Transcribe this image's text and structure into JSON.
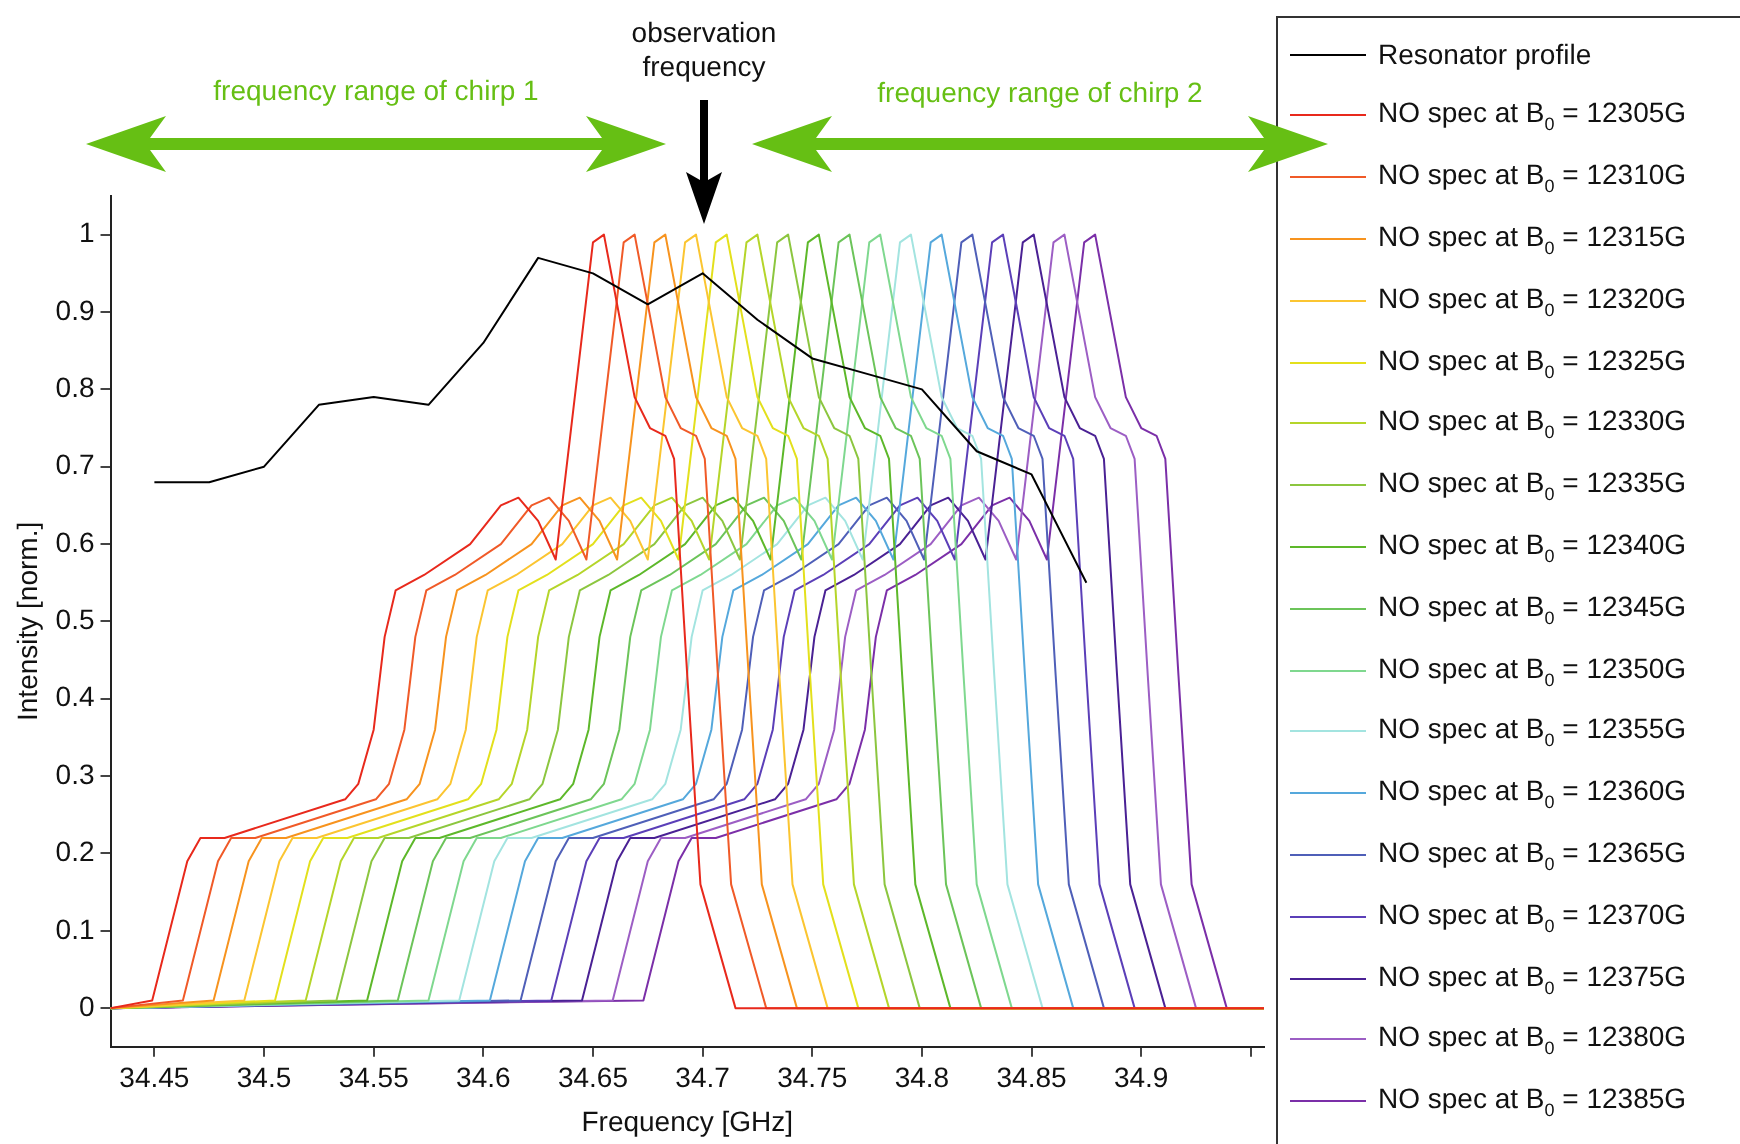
{
  "chart_data": {
    "type": "line",
    "xlabel": "Frequency [GHz]",
    "ylabel": "Intensity [norm.]",
    "xlim": [
      34.43,
      34.956
    ],
    "ylim": [
      -0.05,
      1.05
    ],
    "xticks": [
      34.45,
      34.5,
      34.55,
      34.6,
      34.65,
      34.7,
      34.75,
      34.8,
      34.85,
      34.9,
      {
        "value": 34.95,
        "label": null
      }
    ],
    "yticks": [
      0,
      0.1,
      0.2,
      0.3,
      0.4,
      0.5,
      0.6,
      0.7,
      0.8,
      0.9,
      1
    ],
    "legend": "right",
    "marker": "none",
    "annotations": [
      "frequency range of chirp 1",
      "observation frequency",
      "frequency range of chirp 2"
    ],
    "series": [
      {
        "name": "Resonator profile",
        "color": "#000000",
        "x": [
          34.45,
          34.475,
          34.5,
          34.525,
          34.55,
          34.575,
          34.6,
          34.625,
          34.65,
          34.675,
          34.7,
          34.725,
          34.75,
          34.775,
          34.8,
          34.825,
          34.85,
          34.875
        ],
        "values": [
          0.68,
          0.68,
          0.7,
          0.78,
          0.79,
          0.78,
          0.86,
          0.97,
          0.95,
          0.91,
          0.95,
          0.89,
          0.84,
          0.82,
          0.8,
          0.72,
          0.69,
          0.55
        ]
      },
      {
        "name": "NO spec at B$_{0}$ = 12305G",
        "color": "#e8291c",
        "x": [
          34.43,
          34.449,
          34.465,
          34.471,
          34.482,
          34.537,
          34.543,
          34.55,
          34.555,
          34.56,
          34.573,
          34.594,
          34.608,
          34.616,
          34.625,
          34.633,
          34.65,
          34.655,
          34.669,
          34.676,
          34.683,
          34.687,
          34.693,
          34.699,
          34.715,
          34.956
        ],
        "values": [
          0,
          0.01,
          0.19,
          0.22,
          0.22,
          0.27,
          0.29,
          0.36,
          0.48,
          0.54,
          0.56,
          0.6,
          0.65,
          0.66,
          0.63,
          0.58,
          0.99,
          1,
          0.79,
          0.75,
          0.74,
          0.71,
          0.43,
          0.16,
          0,
          0
        ]
      },
      {
        "name": "NO spec at B$_{0}$ = 12310G",
        "color": "#f05a28",
        "x": [
          34.43,
          34.463,
          34.479,
          34.485,
          34.496,
          34.551,
          34.557,
          34.564,
          34.569,
          34.574,
          34.587,
          34.608,
          34.622,
          34.63,
          34.639,
          34.647,
          34.664,
          34.669,
          34.683,
          34.69,
          34.697,
          34.701,
          34.707,
          34.713,
          34.729,
          34.956
        ],
        "values": [
          0,
          0.01,
          0.19,
          0.22,
          0.22,
          0.27,
          0.29,
          0.36,
          0.48,
          0.54,
          0.56,
          0.6,
          0.65,
          0.66,
          0.63,
          0.58,
          0.99,
          1,
          0.79,
          0.75,
          0.74,
          0.71,
          0.43,
          0.16,
          0,
          0
        ]
      },
      {
        "name": "NO spec at B$_{0}$ = 12315G",
        "color": "#f7931e",
        "x": [
          34.43,
          34.477,
          34.493,
          34.499,
          34.51,
          34.565,
          34.571,
          34.578,
          34.583,
          34.588,
          34.601,
          34.622,
          34.636,
          34.644,
          34.653,
          34.661,
          34.678,
          34.683,
          34.697,
          34.704,
          34.711,
          34.715,
          34.721,
          34.727,
          34.743,
          34.956
        ],
        "values": [
          0,
          0.01,
          0.19,
          0.22,
          0.22,
          0.27,
          0.29,
          0.36,
          0.48,
          0.54,
          0.56,
          0.6,
          0.65,
          0.66,
          0.63,
          0.58,
          0.99,
          1,
          0.79,
          0.75,
          0.74,
          0.71,
          0.43,
          0.16,
          0,
          0
        ]
      },
      {
        "name": "NO spec at B$_{0}$ = 12320G",
        "color": "#fbc531",
        "x": [
          34.43,
          34.491,
          34.507,
          34.513,
          34.524,
          34.579,
          34.585,
          34.592,
          34.597,
          34.602,
          34.615,
          34.636,
          34.65,
          34.658,
          34.667,
          34.675,
          34.692,
          34.697,
          34.711,
          34.718,
          34.725,
          34.729,
          34.735,
          34.741,
          34.757,
          34.956
        ],
        "values": [
          0,
          0.01,
          0.19,
          0.22,
          0.22,
          0.27,
          0.29,
          0.36,
          0.48,
          0.54,
          0.56,
          0.6,
          0.65,
          0.66,
          0.63,
          0.58,
          0.99,
          1,
          0.79,
          0.75,
          0.74,
          0.71,
          0.43,
          0.16,
          0,
          0
        ]
      },
      {
        "name": "NO spec at B$_{0}$ = 12325G",
        "color": "#e3e01c",
        "x": [
          34.43,
          34.505,
          34.521,
          34.527,
          34.538,
          34.593,
          34.599,
          34.606,
          34.611,
          34.616,
          34.629,
          34.65,
          34.664,
          34.672,
          34.681,
          34.689,
          34.706,
          34.711,
          34.725,
          34.732,
          34.739,
          34.743,
          34.749,
          34.755,
          34.771,
          34.956
        ],
        "values": [
          0,
          0.01,
          0.19,
          0.22,
          0.22,
          0.27,
          0.29,
          0.36,
          0.48,
          0.54,
          0.56,
          0.6,
          0.65,
          0.66,
          0.63,
          0.58,
          0.99,
          1,
          0.79,
          0.75,
          0.74,
          0.71,
          0.43,
          0.16,
          0,
          0
        ]
      },
      {
        "name": "NO spec at B$_{0}$ = 12330G",
        "color": "#b5d52a",
        "x": [
          34.43,
          34.519,
          34.535,
          34.541,
          34.552,
          34.607,
          34.613,
          34.62,
          34.625,
          34.63,
          34.643,
          34.664,
          34.678,
          34.686,
          34.695,
          34.703,
          34.72,
          34.725,
          34.739,
          34.746,
          34.753,
          34.757,
          34.763,
          34.769,
          34.785,
          34.956
        ],
        "values": [
          0,
          0.01,
          0.19,
          0.22,
          0.22,
          0.27,
          0.29,
          0.36,
          0.48,
          0.54,
          0.56,
          0.6,
          0.65,
          0.66,
          0.63,
          0.58,
          0.99,
          1,
          0.79,
          0.75,
          0.74,
          0.71,
          0.43,
          0.16,
          0,
          0
        ]
      },
      {
        "name": "NO spec at B$_{0}$ = 12335G",
        "color": "#8cc63f",
        "x": [
          34.43,
          34.533,
          34.549,
          34.555,
          34.566,
          34.621,
          34.627,
          34.634,
          34.639,
          34.644,
          34.657,
          34.678,
          34.692,
          34.7,
          34.709,
          34.717,
          34.734,
          34.739,
          34.753,
          34.76,
          34.767,
          34.771,
          34.777,
          34.783,
          34.799,
          34.956
        ],
        "values": [
          0,
          0.01,
          0.19,
          0.22,
          0.22,
          0.27,
          0.29,
          0.36,
          0.48,
          0.54,
          0.56,
          0.6,
          0.65,
          0.66,
          0.63,
          0.58,
          0.99,
          1,
          0.79,
          0.75,
          0.74,
          0.71,
          0.43,
          0.16,
          0,
          0
        ]
      },
      {
        "name": "NO spec at B$_{0}$ = 12340G",
        "color": "#5db82a",
        "x": [
          34.43,
          34.547,
          34.563,
          34.569,
          34.58,
          34.635,
          34.641,
          34.648,
          34.653,
          34.658,
          34.671,
          34.692,
          34.706,
          34.714,
          34.723,
          34.731,
          34.748,
          34.753,
          34.767,
          34.774,
          34.781,
          34.785,
          34.791,
          34.797,
          34.813,
          34.956
        ],
        "values": [
          0,
          0.01,
          0.19,
          0.22,
          0.22,
          0.27,
          0.29,
          0.36,
          0.48,
          0.54,
          0.56,
          0.6,
          0.65,
          0.66,
          0.63,
          0.58,
          0.99,
          1,
          0.79,
          0.75,
          0.74,
          0.71,
          0.43,
          0.16,
          0,
          0
        ]
      },
      {
        "name": "NO spec at B$_{0}$ = 12345G",
        "color": "#6cc45a",
        "x": [
          34.43,
          34.561,
          34.577,
          34.583,
          34.594,
          34.649,
          34.655,
          34.662,
          34.667,
          34.672,
          34.685,
          34.706,
          34.72,
          34.728,
          34.737,
          34.745,
          34.762,
          34.767,
          34.781,
          34.788,
          34.795,
          34.799,
          34.805,
          34.811,
          34.827,
          34.956
        ],
        "values": [
          0,
          0.01,
          0.19,
          0.22,
          0.22,
          0.27,
          0.29,
          0.36,
          0.48,
          0.54,
          0.56,
          0.6,
          0.65,
          0.66,
          0.63,
          0.58,
          0.99,
          1,
          0.79,
          0.75,
          0.74,
          0.71,
          0.43,
          0.16,
          0,
          0
        ]
      },
      {
        "name": "NO spec at B$_{0}$ = 12350G",
        "color": "#7fd88f",
        "x": [
          34.43,
          34.575,
          34.591,
          34.597,
          34.608,
          34.663,
          34.669,
          34.676,
          34.681,
          34.686,
          34.699,
          34.72,
          34.734,
          34.742,
          34.751,
          34.759,
          34.776,
          34.781,
          34.795,
          34.802,
          34.809,
          34.813,
          34.819,
          34.825,
          34.841,
          34.956
        ],
        "values": [
          0,
          0.01,
          0.19,
          0.22,
          0.22,
          0.27,
          0.29,
          0.36,
          0.48,
          0.54,
          0.56,
          0.6,
          0.65,
          0.66,
          0.63,
          0.58,
          0.99,
          1,
          0.79,
          0.75,
          0.74,
          0.71,
          0.43,
          0.16,
          0,
          0
        ]
      },
      {
        "name": "NO spec at B$_{0}$ = 12355G",
        "color": "#a3e4e0",
        "x": [
          34.43,
          34.589,
          34.605,
          34.611,
          34.622,
          34.677,
          34.683,
          34.69,
          34.695,
          34.7,
          34.713,
          34.734,
          34.748,
          34.756,
          34.765,
          34.773,
          34.79,
          34.795,
          34.809,
          34.816,
          34.823,
          34.827,
          34.833,
          34.839,
          34.855,
          34.956
        ],
        "values": [
          0,
          0.01,
          0.19,
          0.22,
          0.22,
          0.27,
          0.29,
          0.36,
          0.48,
          0.54,
          0.56,
          0.6,
          0.65,
          0.66,
          0.63,
          0.58,
          0.99,
          1,
          0.79,
          0.75,
          0.74,
          0.71,
          0.43,
          0.16,
          0,
          0
        ]
      },
      {
        "name": "NO spec at B$_{0}$ = 12360G",
        "color": "#55a8dc",
        "x": [
          34.43,
          34.603,
          34.619,
          34.625,
          34.636,
          34.691,
          34.697,
          34.704,
          34.709,
          34.714,
          34.727,
          34.748,
          34.762,
          34.77,
          34.779,
          34.787,
          34.804,
          34.809,
          34.823,
          34.83,
          34.837,
          34.841,
          34.847,
          34.853,
          34.869,
          34.956
        ],
        "values": [
          0,
          0.01,
          0.19,
          0.22,
          0.22,
          0.27,
          0.29,
          0.36,
          0.48,
          0.54,
          0.56,
          0.6,
          0.65,
          0.66,
          0.63,
          0.58,
          0.99,
          1,
          0.79,
          0.75,
          0.74,
          0.71,
          0.43,
          0.16,
          0,
          0
        ]
      },
      {
        "name": "NO spec at B$_{0}$ = 12365G",
        "color": "#4f5fb8",
        "x": [
          34.43,
          34.617,
          34.633,
          34.639,
          34.65,
          34.705,
          34.711,
          34.718,
          34.723,
          34.728,
          34.741,
          34.762,
          34.776,
          34.784,
          34.793,
          34.801,
          34.818,
          34.823,
          34.837,
          34.844,
          34.851,
          34.855,
          34.861,
          34.867,
          34.883,
          34.956
        ],
        "values": [
          0,
          0.01,
          0.19,
          0.22,
          0.22,
          0.27,
          0.29,
          0.36,
          0.48,
          0.54,
          0.56,
          0.6,
          0.65,
          0.66,
          0.63,
          0.58,
          0.99,
          1,
          0.79,
          0.75,
          0.74,
          0.71,
          0.43,
          0.16,
          0,
          0
        ]
      },
      {
        "name": "NO spec at B$_{0}$ = 12370G",
        "color": "#5b3fb8",
        "x": [
          34.43,
          34.631,
          34.647,
          34.653,
          34.664,
          34.719,
          34.725,
          34.732,
          34.737,
          34.742,
          34.755,
          34.776,
          34.79,
          34.798,
          34.807,
          34.815,
          34.832,
          34.837,
          34.851,
          34.858,
          34.865,
          34.869,
          34.875,
          34.881,
          34.897,
          34.956
        ],
        "values": [
          0,
          0.01,
          0.19,
          0.22,
          0.22,
          0.27,
          0.29,
          0.36,
          0.48,
          0.54,
          0.56,
          0.6,
          0.65,
          0.66,
          0.63,
          0.58,
          0.99,
          1,
          0.79,
          0.75,
          0.74,
          0.71,
          0.43,
          0.16,
          0,
          0
        ]
      },
      {
        "name": "NO spec at B$_{0}$ = 12375G",
        "color": "#4a2194",
        "x": [
          34.43,
          34.645,
          34.661,
          34.667,
          34.678,
          34.733,
          34.739,
          34.746,
          34.751,
          34.756,
          34.769,
          34.79,
          34.804,
          34.812,
          34.821,
          34.829,
          34.846,
          34.851,
          34.865,
          34.872,
          34.879,
          34.883,
          34.889,
          34.895,
          34.911,
          34.956
        ],
        "values": [
          0,
          0.01,
          0.19,
          0.22,
          0.22,
          0.27,
          0.29,
          0.36,
          0.48,
          0.54,
          0.56,
          0.6,
          0.65,
          0.66,
          0.63,
          0.58,
          0.99,
          1,
          0.79,
          0.75,
          0.74,
          0.71,
          0.43,
          0.16,
          0,
          0
        ]
      },
      {
        "name": "NO spec at B$_{0}$ = 12380G",
        "color": "#9c5ec4",
        "x": [
          34.43,
          34.659,
          34.675,
          34.681,
          34.692,
          34.747,
          34.753,
          34.76,
          34.765,
          34.77,
          34.783,
          34.804,
          34.818,
          34.826,
          34.835,
          34.843,
          34.86,
          34.865,
          34.879,
          34.886,
          34.893,
          34.897,
          34.903,
          34.909,
          34.925,
          34.956
        ],
        "values": [
          0,
          0.01,
          0.19,
          0.22,
          0.22,
          0.27,
          0.29,
          0.36,
          0.48,
          0.54,
          0.56,
          0.6,
          0.65,
          0.66,
          0.63,
          0.58,
          0.99,
          1,
          0.79,
          0.75,
          0.74,
          0.71,
          0.43,
          0.16,
          0,
          0
        ]
      },
      {
        "name": "NO spec at B$_{0}$ = 12385G",
        "color": "#7b2fa8",
        "x": [
          34.43,
          34.673,
          34.689,
          34.695,
          34.706,
          34.761,
          34.767,
          34.774,
          34.779,
          34.784,
          34.797,
          34.818,
          34.832,
          34.84,
          34.849,
          34.857,
          34.874,
          34.879,
          34.893,
          34.9,
          34.907,
          34.911,
          34.917,
          34.923,
          34.939,
          34.956
        ],
        "values": [
          0,
          0.01,
          0.19,
          0.22,
          0.22,
          0.27,
          0.29,
          0.36,
          0.48,
          0.54,
          0.56,
          0.6,
          0.65,
          0.66,
          0.63,
          0.58,
          0.99,
          1,
          0.79,
          0.75,
          0.74,
          0.71,
          0.43,
          0.16,
          0,
          0
        ]
      }
    ]
  }
}
